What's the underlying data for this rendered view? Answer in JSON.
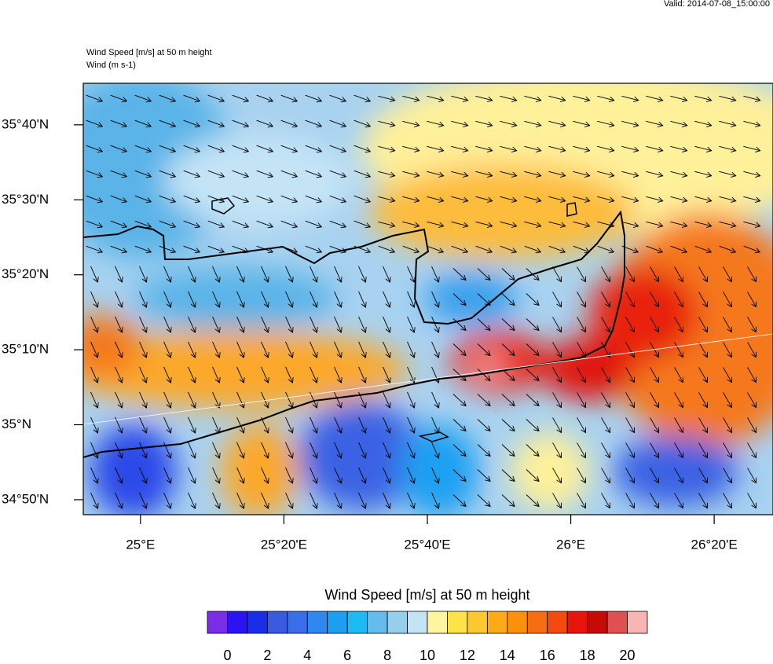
{
  "header": {
    "valid": "Valid: 2014-07-08_15:00:00",
    "title": "Wind Speed [m/s] at 50 m height",
    "subtitle": "Wind   (m s-1)"
  },
  "map": {
    "latlim": [
      34.8,
      35.759
    ],
    "lonlim": [
      24.867,
      26.47
    ],
    "latticks": [
      {
        "value": 35.6667,
        "label": "35°40'N"
      },
      {
        "value": 35.5,
        "label": "35°30'N"
      },
      {
        "value": 35.3333,
        "label": "35°20'N"
      },
      {
        "value": 35.1667,
        "label": "35°10'N"
      },
      {
        "value": 35,
        "label": "35°N"
      },
      {
        "value": 34.8333,
        "label": "34°50'N"
      }
    ],
    "lonticks": [
      {
        "value": 25,
        "label": "25°E"
      },
      {
        "value": 25.3333,
        "label": "25°20'E"
      },
      {
        "value": 25.6667,
        "label": "25°40'E"
      },
      {
        "value": 26,
        "label": "26°E"
      },
      {
        "value": 26.3333,
        "label": "26°20'E"
      }
    ]
  },
  "colorbar": {
    "title": "Wind Speed [m/s] at 50 m height",
    "range": [
      -1,
      21
    ],
    "colors": [
      "#7b2ce8",
      "#2c14f2",
      "#1a2ee8",
      "#3a5ae0",
      "#3a6ee8",
      "#2e88f0",
      "#1ea0f2",
      "#1ebaf4",
      "#64bcec",
      "#96cfee",
      "#c4e4f6",
      "#fff59c",
      "#fee24a",
      "#fdc830",
      "#fcaa18",
      "#fb900c",
      "#f76e12",
      "#f44a10",
      "#e8140c",
      "#c80a04",
      "#e05050",
      "#fbb4b4"
    ],
    "ticks": [
      0,
      2,
      4,
      6,
      8,
      10,
      12,
      14,
      16,
      18,
      20
    ]
  }
}
